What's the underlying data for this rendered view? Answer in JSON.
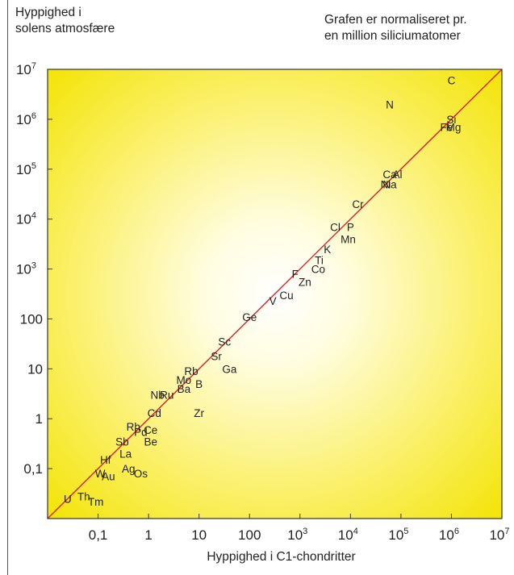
{
  "ylabel_lines": [
    "Hyppighed i",
    "solens atmosfære"
  ],
  "note_lines": [
    "Grafen er normaliseret pr.",
    "en million siliciumatomer"
  ],
  "xlabel": "Hyppighed i C1-chondritter",
  "colors": {
    "center": "#ffffff",
    "edge": "#f2e300",
    "diagonal": "#d9202a",
    "frame": "#333333"
  },
  "chart_data": {
    "type": "scatter",
    "xscale": "log",
    "yscale": "log",
    "xlim": [
      0.01,
      10000000
    ],
    "ylim": [
      0.01,
      10000000
    ],
    "xlabel": "Hyppighed i C1-chondritter",
    "ylabel": "Hyppighed i solens atmosfære",
    "reference_line": "y = x",
    "x_ticks": [
      {
        "value": 0.1,
        "label": "0,1"
      },
      {
        "value": 1,
        "label": "1"
      },
      {
        "value": 10,
        "label": "10"
      },
      {
        "value": 100,
        "label": "100"
      },
      {
        "value": 1000,
        "base": "10",
        "exp": "3"
      },
      {
        "value": 10000,
        "base": "10",
        "exp": "4"
      },
      {
        "value": 100000,
        "base": "10",
        "exp": "5"
      },
      {
        "value": 1000000,
        "base": "10",
        "exp": "6"
      },
      {
        "value": 10000000,
        "base": "10",
        "exp": "7"
      }
    ],
    "y_ticks": [
      {
        "value": 0.1,
        "label": "0,1"
      },
      {
        "value": 1,
        "label": "1"
      },
      {
        "value": 10,
        "label": "10"
      },
      {
        "value": 100,
        "label": "100"
      },
      {
        "value": 1000,
        "base": "10",
        "exp": "3"
      },
      {
        "value": 10000,
        "base": "10",
        "exp": "4"
      },
      {
        "value": 100000,
        "base": "10",
        "exp": "5"
      },
      {
        "value": 1000000,
        "base": "10",
        "exp": "6"
      },
      {
        "value": 10000000,
        "base": "10",
        "exp": "7"
      }
    ],
    "points": [
      {
        "label": "C",
        "x": 1000000,
        "y": 6000000
      },
      {
        "label": "N",
        "x": 60000,
        "y": 2000000
      },
      {
        "label": "Si",
        "x": 1000000,
        "y": 1000000
      },
      {
        "label": "Fe",
        "x": 800000,
        "y": 700000
      },
      {
        "label": "Mg",
        "x": 1100000,
        "y": 700000
      },
      {
        "label": "Ca",
        "x": 60000,
        "y": 80000
      },
      {
        "label": "Al",
        "x": 85000,
        "y": 80000
      },
      {
        "label": "Ni",
        "x": 50000,
        "y": 50000
      },
      {
        "label": "Na",
        "x": 60000,
        "y": 50000
      },
      {
        "label": "Cr",
        "x": 14000,
        "y": 20000
      },
      {
        "label": "Cl",
        "x": 5000,
        "y": 7000
      },
      {
        "label": "P",
        "x": 10000,
        "y": 7000
      },
      {
        "label": "Mn",
        "x": 9000,
        "y": 4000
      },
      {
        "label": "K",
        "x": 3500,
        "y": 2500
      },
      {
        "label": "Ti",
        "x": 2400,
        "y": 1500
      },
      {
        "label": "Co",
        "x": 2300,
        "y": 1000
      },
      {
        "label": "F",
        "x": 800,
        "y": 800
      },
      {
        "label": "Zn",
        "x": 1250,
        "y": 550
      },
      {
        "label": "Cu",
        "x": 540,
        "y": 300
      },
      {
        "label": "V",
        "x": 290,
        "y": 230
      },
      {
        "label": "Ge",
        "x": 100,
        "y": 110
      },
      {
        "label": "Sc",
        "x": 32,
        "y": 35
      },
      {
        "label": "Sr",
        "x": 22,
        "y": 18
      },
      {
        "label": "Ga",
        "x": 40,
        "y": 10
      },
      {
        "label": "Rb",
        "x": 7,
        "y": 9
      },
      {
        "label": "Mo",
        "x": 5,
        "y": 6
      },
      {
        "label": "B",
        "x": 10,
        "y": 5
      },
      {
        "label": "Ba",
        "x": 5,
        "y": 4
      },
      {
        "label": "Nb",
        "x": 1.5,
        "y": 3
      },
      {
        "label": "Ru",
        "x": 2.3,
        "y": 3
      },
      {
        "label": "Zr",
        "x": 10,
        "y": 1.3
      },
      {
        "label": "Cd",
        "x": 1.3,
        "y": 1.3
      },
      {
        "label": "Rh",
        "x": 0.5,
        "y": 0.7
      },
      {
        "label": "Ce",
        "x": 1.1,
        "y": 0.6
      },
      {
        "label": "Pd",
        "x": 0.7,
        "y": 0.55
      },
      {
        "label": "Sb",
        "x": 0.3,
        "y": 0.35
      },
      {
        "label": "Be",
        "x": 1.1,
        "y": 0.35
      },
      {
        "label": "La",
        "x": 0.35,
        "y": 0.2
      },
      {
        "label": "Hf",
        "x": 0.14,
        "y": 0.15
      },
      {
        "label": "Ag",
        "x": 0.4,
        "y": 0.1
      },
      {
        "label": "Os",
        "x": 0.7,
        "y": 0.08
      },
      {
        "label": "W",
        "x": 0.11,
        "y": 0.08
      },
      {
        "label": "Au",
        "x": 0.16,
        "y": 0.07
      },
      {
        "label": "U",
        "x": 0.025,
        "y": 0.025
      },
      {
        "label": "Th",
        "x": 0.052,
        "y": 0.028
      },
      {
        "label": "Tm",
        "x": 0.09,
        "y": 0.022
      }
    ]
  }
}
